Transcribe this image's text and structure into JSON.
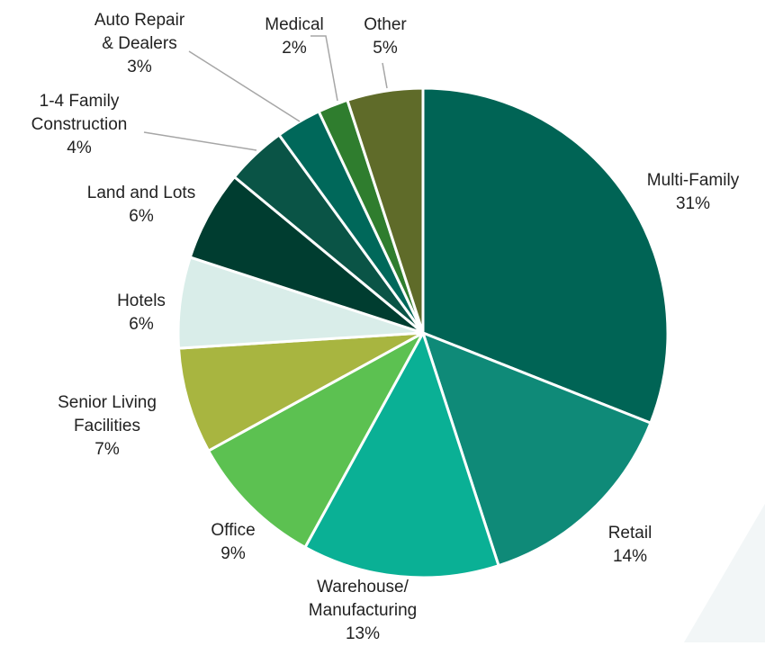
{
  "chart_data": {
    "type": "pie",
    "categories": [
      "Multi-Family",
      "Retail",
      "Warehouse/\nManufacturing",
      "Office",
      "Senior Living\nFacilities",
      "Hotels",
      "Land and Lots",
      "1-4 Family\nConstruction",
      "Auto Repair\n& Dealers",
      "Medical",
      "Other"
    ],
    "values": [
      31,
      14,
      13,
      9,
      7,
      6,
      6,
      4,
      3,
      2,
      5
    ],
    "value_labels": [
      "31%",
      "14%",
      "13%",
      "9%",
      "7%",
      "6%",
      "6%",
      "4%",
      "3%",
      "2%",
      "5%"
    ],
    "colors": [
      "#006455",
      "#0f8a78",
      "#0ab095",
      "#5cc151",
      "#a8b540",
      "#d9ede9",
      "#003d30",
      "#0a5446",
      "#00685a",
      "#2f7d2e",
      "#5f6b29"
    ]
  }
}
